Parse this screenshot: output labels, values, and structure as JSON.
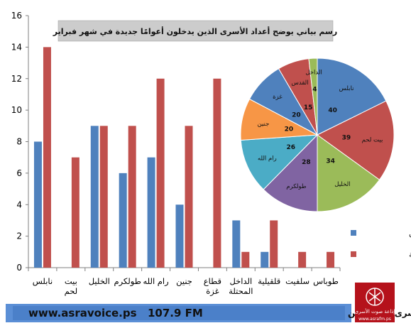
{
  "chart_data": [
    {
      "type": "bar",
      "categories": [
        "نابلس",
        "بيت لحم",
        "الخليل",
        "طولكرم",
        "رام الله",
        "جنين",
        "قطاع غزة",
        "الداخل المحتلة",
        "قلقيلية",
        "سلفيت",
        "طوباس"
      ],
      "series": [
        {
          "name": "الموقوفين",
          "color": "#4f81bd",
          "values": [
            8,
            0,
            9,
            6,
            7,
            4,
            0,
            3,
            1,
            0,
            0
          ]
        },
        {
          "name": "أحكام عالية",
          "color": "#c0504d",
          "values": [
            14,
            7,
            9,
            9,
            12,
            9,
            12,
            1,
            3,
            1,
            1
          ]
        }
      ],
      "ylim": [
        0,
        16
      ],
      "yticks": [
        "0",
        "2",
        "4",
        "6",
        "8",
        "10",
        "12",
        "14",
        "16"
      ],
      "grid": false,
      "legend": "bottom-right"
    },
    {
      "type": "pie",
      "title": "رسم بياني يوضح أعداد الأسرى الذين يدخلون أعوامًا جديدة في شهر فبراير",
      "slices": [
        {
          "label": "نابلس",
          "value": 40,
          "color": "#4f81bd"
        },
        {
          "label": "بيت لحم",
          "value": 39,
          "color": "#c0504d"
        },
        {
          "label": "الخليل",
          "value": 34,
          "color": "#9bbb59"
        },
        {
          "label": "طولكرم",
          "value": 28,
          "color": "#8064a2"
        },
        {
          "label": "رام الله",
          "value": 26,
          "color": "#4bacc6"
        },
        {
          "label": "جنين",
          "value": 20,
          "color": "#f79646"
        },
        {
          "label": "غزة",
          "value": 20,
          "color": "#4f81bd"
        },
        {
          "label": "القدس",
          "value": 15,
          "color": "#c0504d"
        },
        {
          "label": "الداخل",
          "value": 4,
          "color": "#9bbb59"
        }
      ]
    }
  ],
  "footer": {
    "website": "www.asravoice.ps",
    "frequency": "107.9 FM",
    "station": "اذاعة صوت الأسرى - فلسطين"
  },
  "logo": {
    "name": "إذاعة صوت الأسرى",
    "url": "www.asrafm.ps"
  }
}
